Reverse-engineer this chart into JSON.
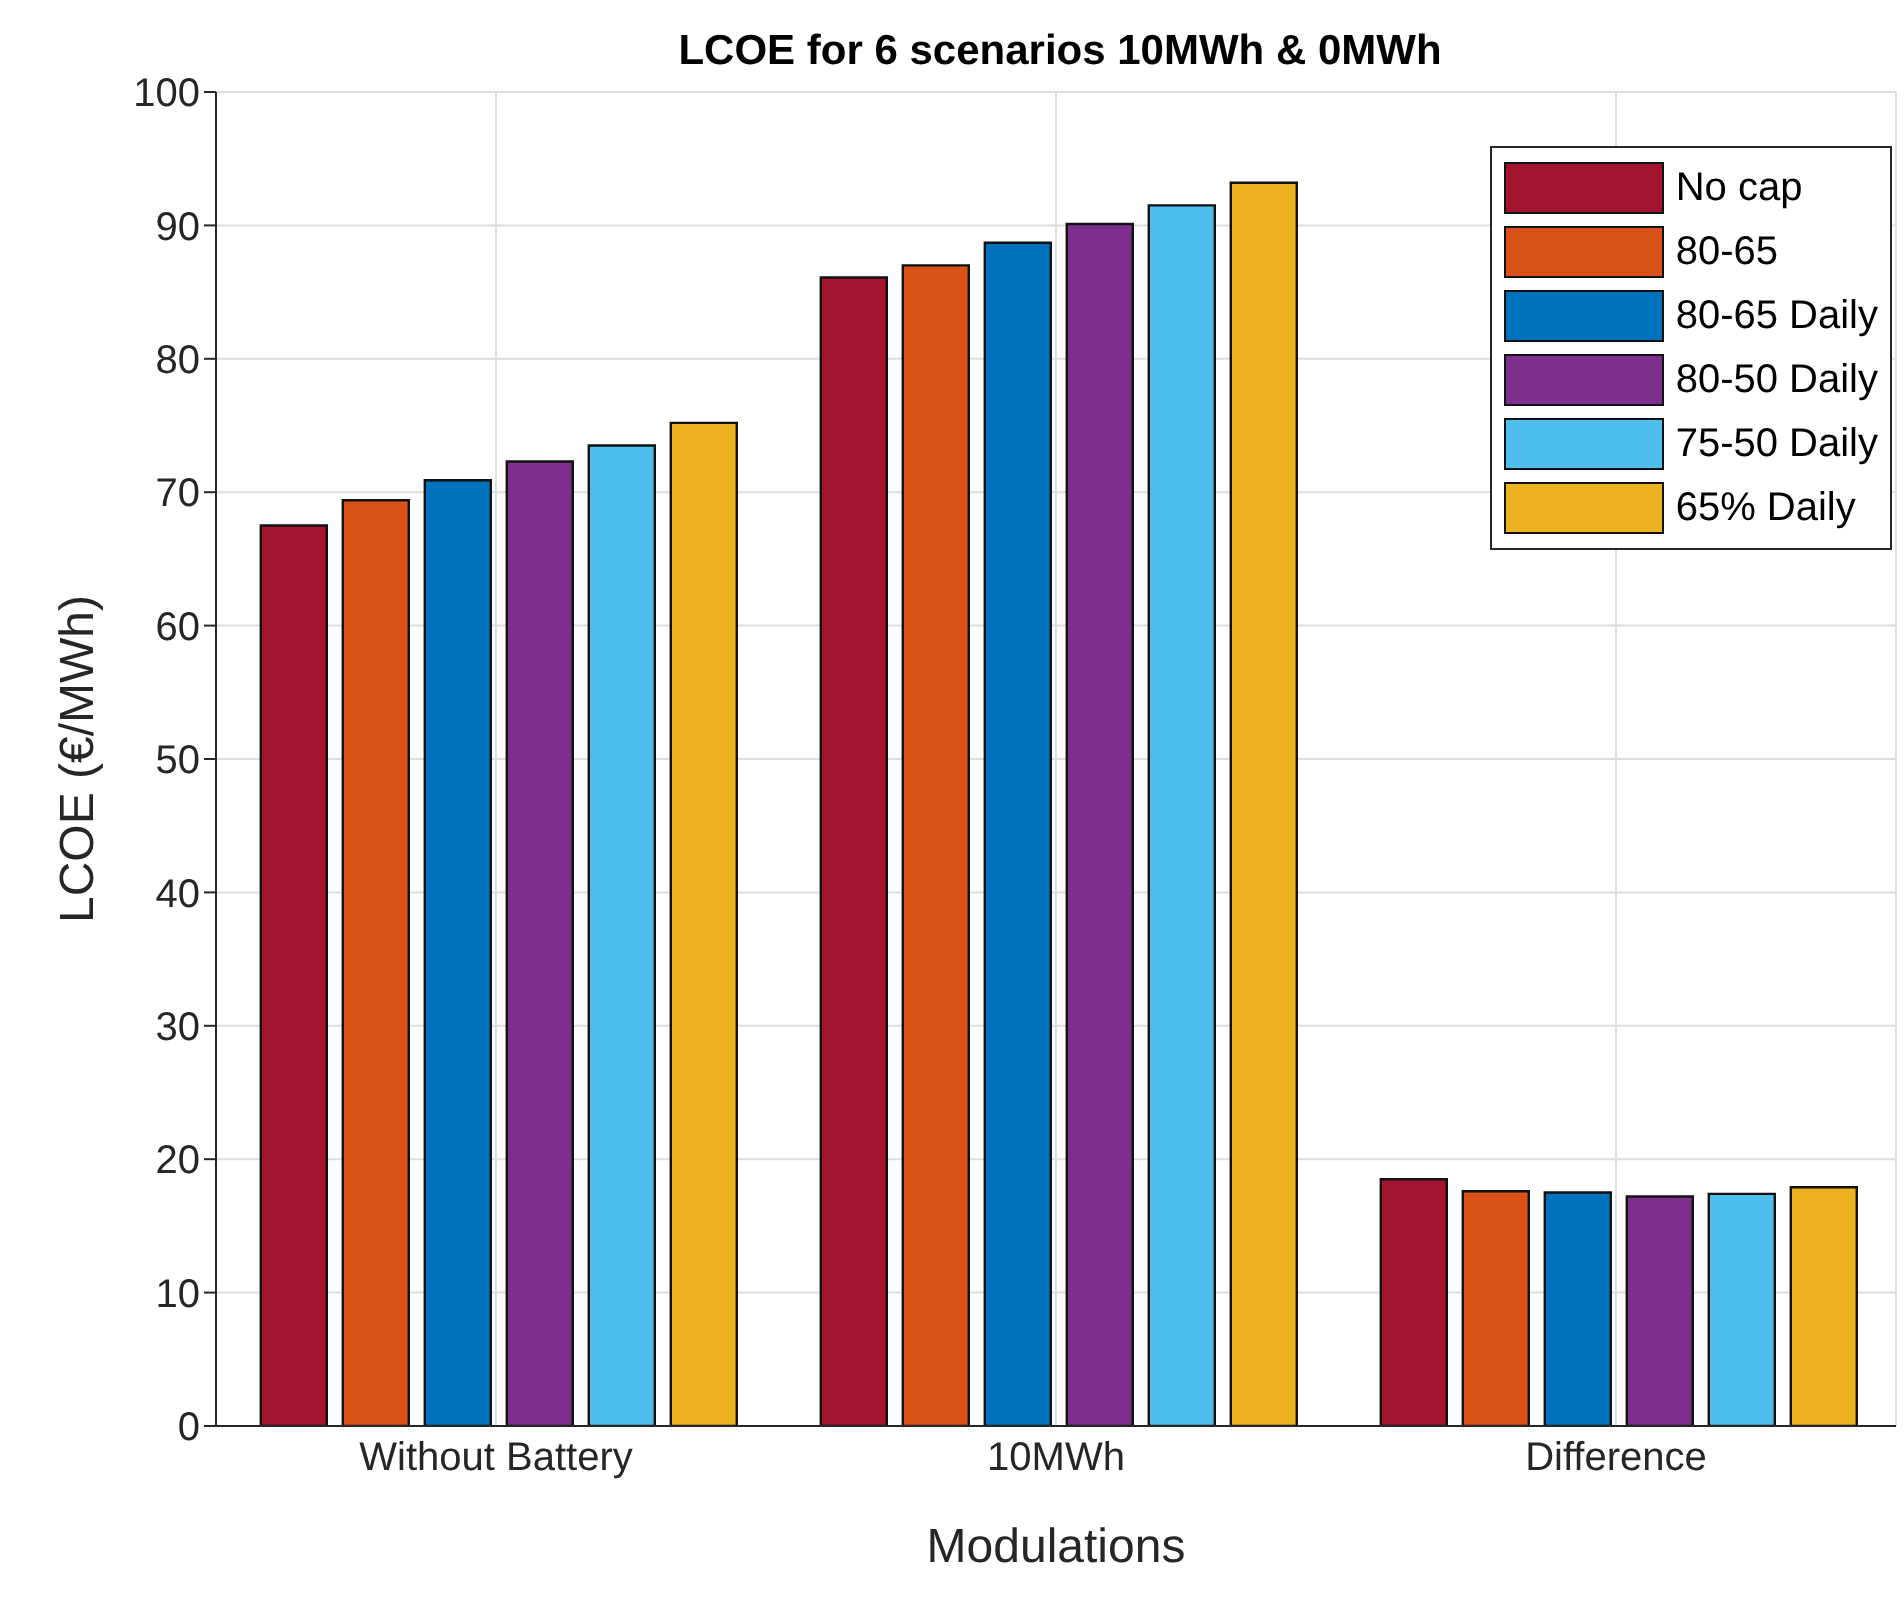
{
  "chart_data": {
    "type": "bar",
    "title": "LCOE for 6 scenarios 10MWh & 0MWh",
    "xlabel": "Modulations",
    "ylabel": "LCOE (€/MWh)",
    "categories": [
      "Without Battery",
      "10MWh",
      "Difference"
    ],
    "series": [
      {
        "name": "No cap",
        "color": "#a2142f",
        "values": [
          67.5,
          86.1,
          18.5
        ]
      },
      {
        "name": "80-65",
        "color": "#d95319",
        "values": [
          69.4,
          87.0,
          17.6
        ]
      },
      {
        "name": "80-65 Daily",
        "color": "#0072bd",
        "values": [
          70.9,
          88.7,
          17.5
        ]
      },
      {
        "name": "80-50 Daily",
        "color": "#7e2f8e",
        "values": [
          72.3,
          90.1,
          17.2
        ]
      },
      {
        "name": "75-50 Daily",
        "color": "#4dbeee",
        "values": [
          73.5,
          91.5,
          17.4
        ]
      },
      {
        "name": "65% Daily",
        "color": "#edb120",
        "values": [
          75.2,
          93.2,
          17.9
        ]
      }
    ],
    "ylim": [
      0,
      100
    ],
    "yticks": [
      0,
      10,
      20,
      30,
      40,
      50,
      60,
      70,
      80,
      90,
      100
    ],
    "grid": true,
    "legend": "top right"
  }
}
